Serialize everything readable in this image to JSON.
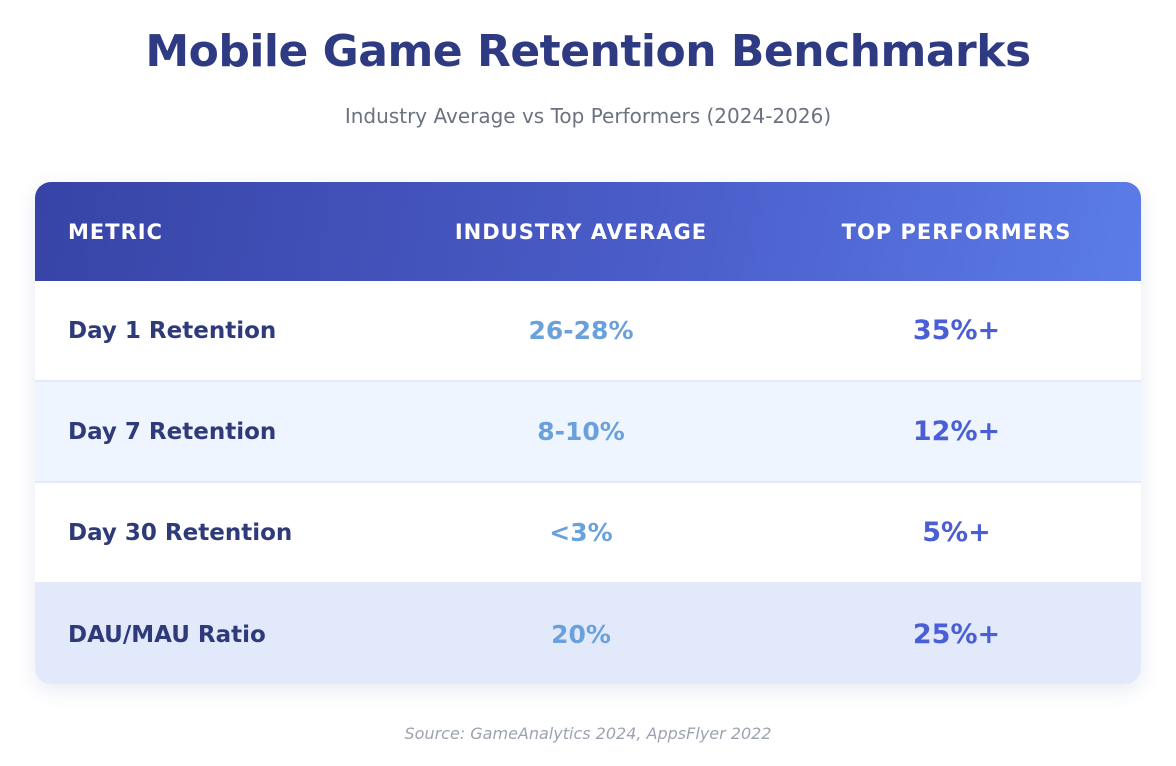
{
  "title": "Mobile Game Retention Benchmarks",
  "subtitle": "Industry Average vs Top Performers (2024-2026)",
  "table": {
    "headers": [
      "METRIC",
      "INDUSTRY AVERAGE",
      "TOP PERFORMERS"
    ],
    "rows": [
      {
        "metric": "Day 1 Retention",
        "average": "26-28%",
        "top": "35%+"
      },
      {
        "metric": "Day 7 Retention",
        "average": "8-10%",
        "top": "12%+"
      },
      {
        "metric": "Day 30 Retention",
        "average": "<3%",
        "top": "5%+"
      },
      {
        "metric": "DAU/MAU Ratio",
        "average": "20%",
        "top": "25%+"
      }
    ]
  },
  "source": "Source: GameAnalytics 2024, AppsFlyer 2022",
  "colors": {
    "title": "#2e3a82",
    "header_start": "#3744a6",
    "header_end": "#5b7ce8",
    "average": "#6aa1dc",
    "top": "#4a5ed6"
  }
}
